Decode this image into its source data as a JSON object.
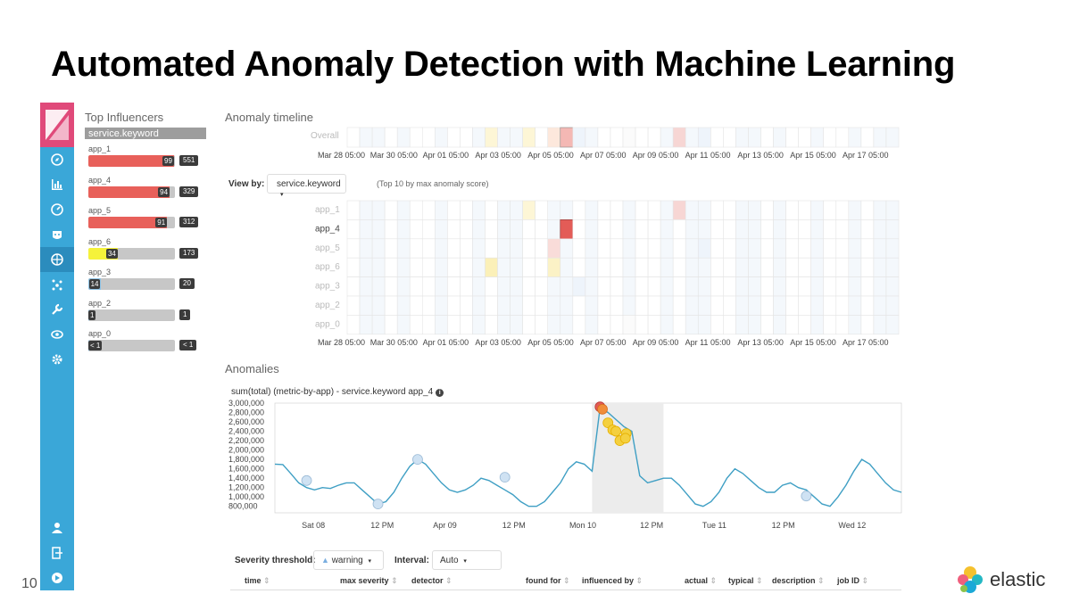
{
  "slide": {
    "title": "Automated Anomaly Detection with Machine Learning",
    "page_number": "10"
  },
  "nav": {
    "icons": [
      "discover-icon",
      "visualize-icon",
      "dashboard-icon",
      "timelion-icon",
      "machine-learning-icon",
      "graph-icon",
      "dev-tools-icon",
      "monitoring-icon",
      "management-icon"
    ],
    "bottom_icons": [
      "user-icon",
      "logout-icon",
      "collapse-icon"
    ],
    "accent": "#3aa7d8"
  },
  "influencers": {
    "title": "Top Influencers",
    "field": "service.keyword",
    "items": [
      {
        "label": "app_1",
        "score": "99",
        "score_value": 99,
        "count": "551",
        "color": "#e8605a"
      },
      {
        "label": "app_4",
        "score": "94",
        "score_value": 94,
        "count": "329",
        "color": "#e8605a"
      },
      {
        "label": "app_5",
        "score": "91",
        "score_value": 91,
        "count": "312",
        "color": "#e8605a"
      },
      {
        "label": "app_6",
        "score": "34",
        "score_value": 34,
        "count": "173",
        "color": "#f5f23a"
      },
      {
        "label": "app_3",
        "score": "14",
        "score_value": 14,
        "count": "20",
        "color": "#8fc4e6"
      },
      {
        "label": "app_2",
        "score": "1",
        "score_value": 1,
        "count": "1",
        "color": "#8fc4e6"
      },
      {
        "label": "app_0",
        "score": "< 1",
        "score_value": 0,
        "count": "< 1",
        "color": "#8fc4e6"
      }
    ]
  },
  "timeline": {
    "title": "Anomaly timeline",
    "overall_label": "Overall",
    "date_ticks": [
      "Mar 28 05:00",
      "Mar 30 05:00",
      "Apr 01 05:00",
      "Apr 03 05:00",
      "Apr 05 05:00",
      "Apr 07 05:00",
      "Apr 09 05:00",
      "Apr 11 05:00",
      "Apr 13 05:00",
      "Apr 15 05:00",
      "Apr 17 05:00"
    ],
    "view_by_label": "View by:",
    "view_by_value": "service.keyword",
    "view_by_hint": "(Top 10 by max anomaly score)",
    "swimlane_rows": [
      "app_1",
      "app_4",
      "app_5",
      "app_6",
      "app_3",
      "app_2",
      "app_0"
    ]
  },
  "anomalies": {
    "title": "Anomalies",
    "chart_title": "sum(total) (metric-by-app) - service.keyword app_4",
    "severity_label": "Severity threshold:",
    "severity_value": "warning",
    "interval_label": "Interval:",
    "interval_value": "Auto",
    "table_headers": [
      "time",
      "max severity",
      "detector",
      "found for",
      "influenced by",
      "actual",
      "typical",
      "description",
      "job ID"
    ]
  },
  "chart_data": {
    "type": "line",
    "title": "sum(total) (metric-by-app) - service.keyword app_4",
    "xlabel": "",
    "ylabel": "",
    "ylim": [
      700000,
      3000000
    ],
    "y_ticks": [
      "3,000,000",
      "2,800,000",
      "2,600,000",
      "2,400,000",
      "2,200,000",
      "2,000,000",
      "1,800,000",
      "1,600,000",
      "1,400,000",
      "1,200,000",
      "1,000,000",
      "800,000"
    ],
    "x_ticks": [
      "Sat 08",
      "12 PM",
      "Apr 09",
      "12 PM",
      "Mon 10",
      "12 PM",
      "Tue 11",
      "12 PM",
      "Wed 12"
    ],
    "series": [
      {
        "name": "app_4",
        "values": [
          1700000,
          1690000,
          1500000,
          1300000,
          1200000,
          1150000,
          1200000,
          1180000,
          1250000,
          1300000,
          1300000,
          1150000,
          1000000,
          850000,
          900000,
          1100000,
          1400000,
          1650000,
          1800000,
          1700000,
          1500000,
          1300000,
          1150000,
          1100000,
          1150000,
          1250000,
          1400000,
          1350000,
          1250000,
          1150000,
          1050000,
          900000,
          800000,
          800000,
          900000,
          1100000,
          1300000,
          1600000,
          1750000,
          1700000,
          1550000,
          2900000,
          2800000,
          2650000,
          2500000,
          2400000,
          1450000,
          1300000,
          1350000,
          1400000,
          1400000,
          1250000,
          1050000,
          850000,
          800000,
          900000,
          1100000,
          1400000,
          1600000,
          1500000,
          1350000,
          1200000,
          1100000,
          1100000,
          1250000,
          1300000,
          1200000,
          1150000,
          1000000,
          850000,
          800000,
          1000000,
          1250000,
          1550000,
          1800000,
          1700000,
          1500000,
          1300000,
          1150000,
          1100000
        ]
      }
    ],
    "anomaly_points": [
      {
        "index": 4,
        "value": 1350000,
        "severity": "low"
      },
      {
        "index": 13,
        "value": 850000,
        "severity": "low"
      },
      {
        "index": 18,
        "value": 1800000,
        "severity": "low"
      },
      {
        "index": 29,
        "value": 1420000,
        "severity": "low"
      },
      {
        "index": 41,
        "value": 2920000,
        "severity": "critical"
      },
      {
        "index": 41.3,
        "value": 2870000,
        "severity": "major"
      },
      {
        "index": 42,
        "value": 2580000,
        "severity": "warning"
      },
      {
        "index": 42.6,
        "value": 2430000,
        "severity": "warning"
      },
      {
        "index": 43,
        "value": 2400000,
        "severity": "warning"
      },
      {
        "index": 43.5,
        "value": 2200000,
        "severity": "warning"
      },
      {
        "index": 44.3,
        "value": 2350000,
        "severity": "warning"
      },
      {
        "index": 44.2,
        "value": 2250000,
        "severity": "warning"
      },
      {
        "index": 67,
        "value": 1020000,
        "severity": "low"
      }
    ],
    "highlight_range": [
      40,
      49
    ]
  }
}
